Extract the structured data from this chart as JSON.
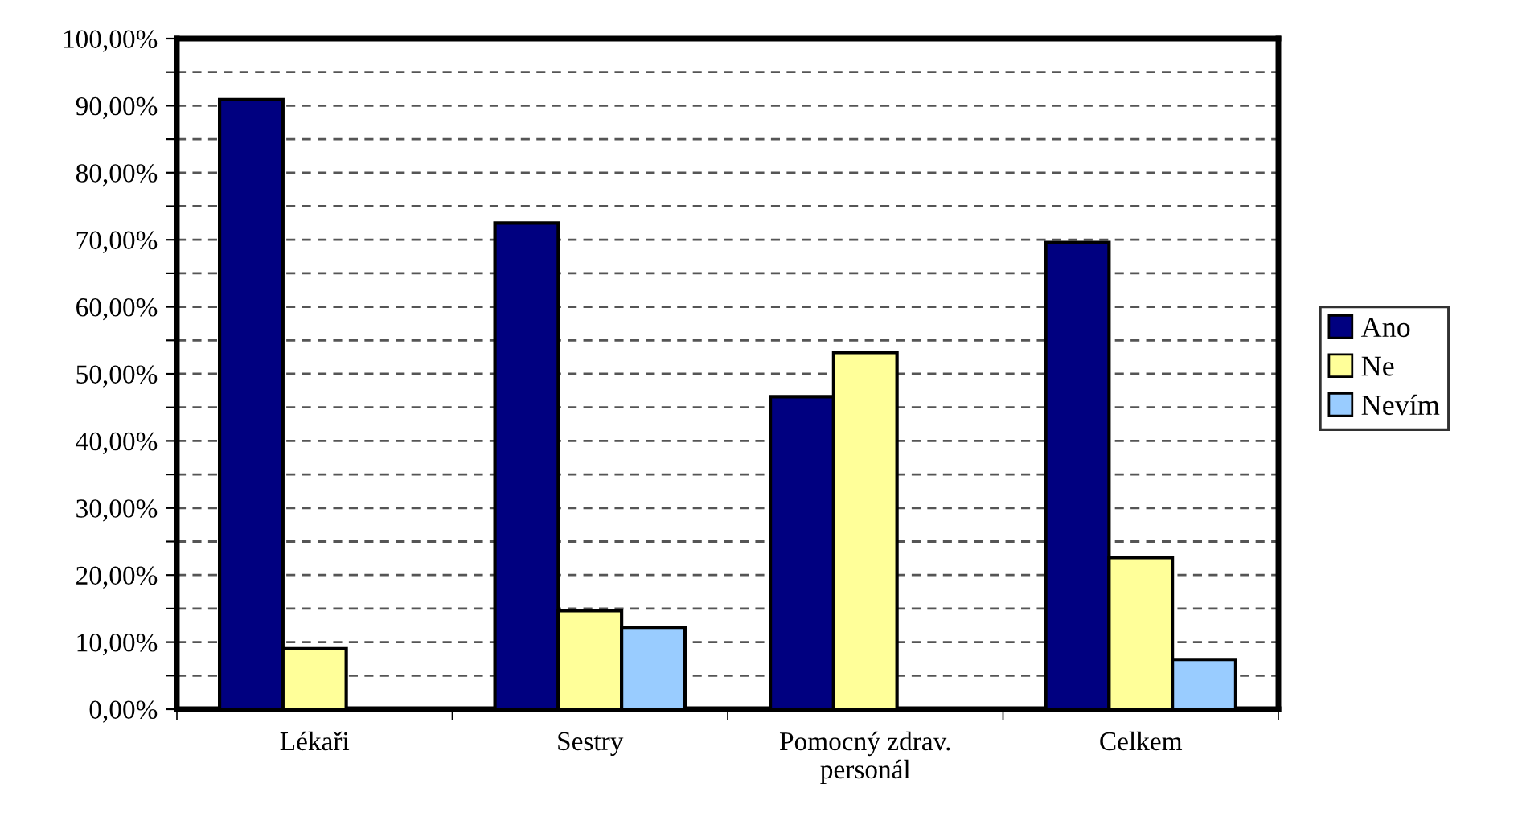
{
  "chart_data": {
    "type": "bar",
    "categories": [
      "Lékaři",
      "Sestry",
      "Pomocný zdrav.\npersonál",
      "Celkem"
    ],
    "series": [
      {
        "name": "Ano",
        "color": "#000080",
        "values": [
          90.9,
          72.5,
          46.6,
          69.6
        ]
      },
      {
        "name": "Ne",
        "color": "#ffff99",
        "values": [
          9.0,
          14.7,
          53.2,
          22.6
        ]
      },
      {
        "name": "Nevím",
        "color": "#99ccff",
        "values": [
          0,
          12.2,
          0,
          7.4
        ]
      }
    ],
    "ylim": [
      0,
      100
    ],
    "yticks": [
      {
        "value": 0,
        "label": "0,00%"
      },
      {
        "value": 5,
        "label": null
      },
      {
        "value": 10,
        "label": "10,00%"
      },
      {
        "value": 15,
        "label": null
      },
      {
        "value": 20,
        "label": "20,00%"
      },
      {
        "value": 25,
        "label": null
      },
      {
        "value": 30,
        "label": "30,00%"
      },
      {
        "value": 35,
        "label": null
      },
      {
        "value": 40,
        "label": "40,00%"
      },
      {
        "value": 45,
        "label": null
      },
      {
        "value": 50,
        "label": "50,00%"
      },
      {
        "value": 55,
        "label": null
      },
      {
        "value": 60,
        "label": "60,00%"
      },
      {
        "value": 65,
        "label": null
      },
      {
        "value": 70,
        "label": "70,00%"
      },
      {
        "value": 75,
        "label": null
      },
      {
        "value": 80,
        "label": "80,00%"
      },
      {
        "value": 85,
        "label": null
      },
      {
        "value": 90,
        "label": "90,00%"
      },
      {
        "value": 95,
        "label": null
      },
      {
        "value": 100,
        "label": "100,00%"
      }
    ],
    "grid": "y",
    "line_style": "dashed",
    "legend": "right"
  }
}
